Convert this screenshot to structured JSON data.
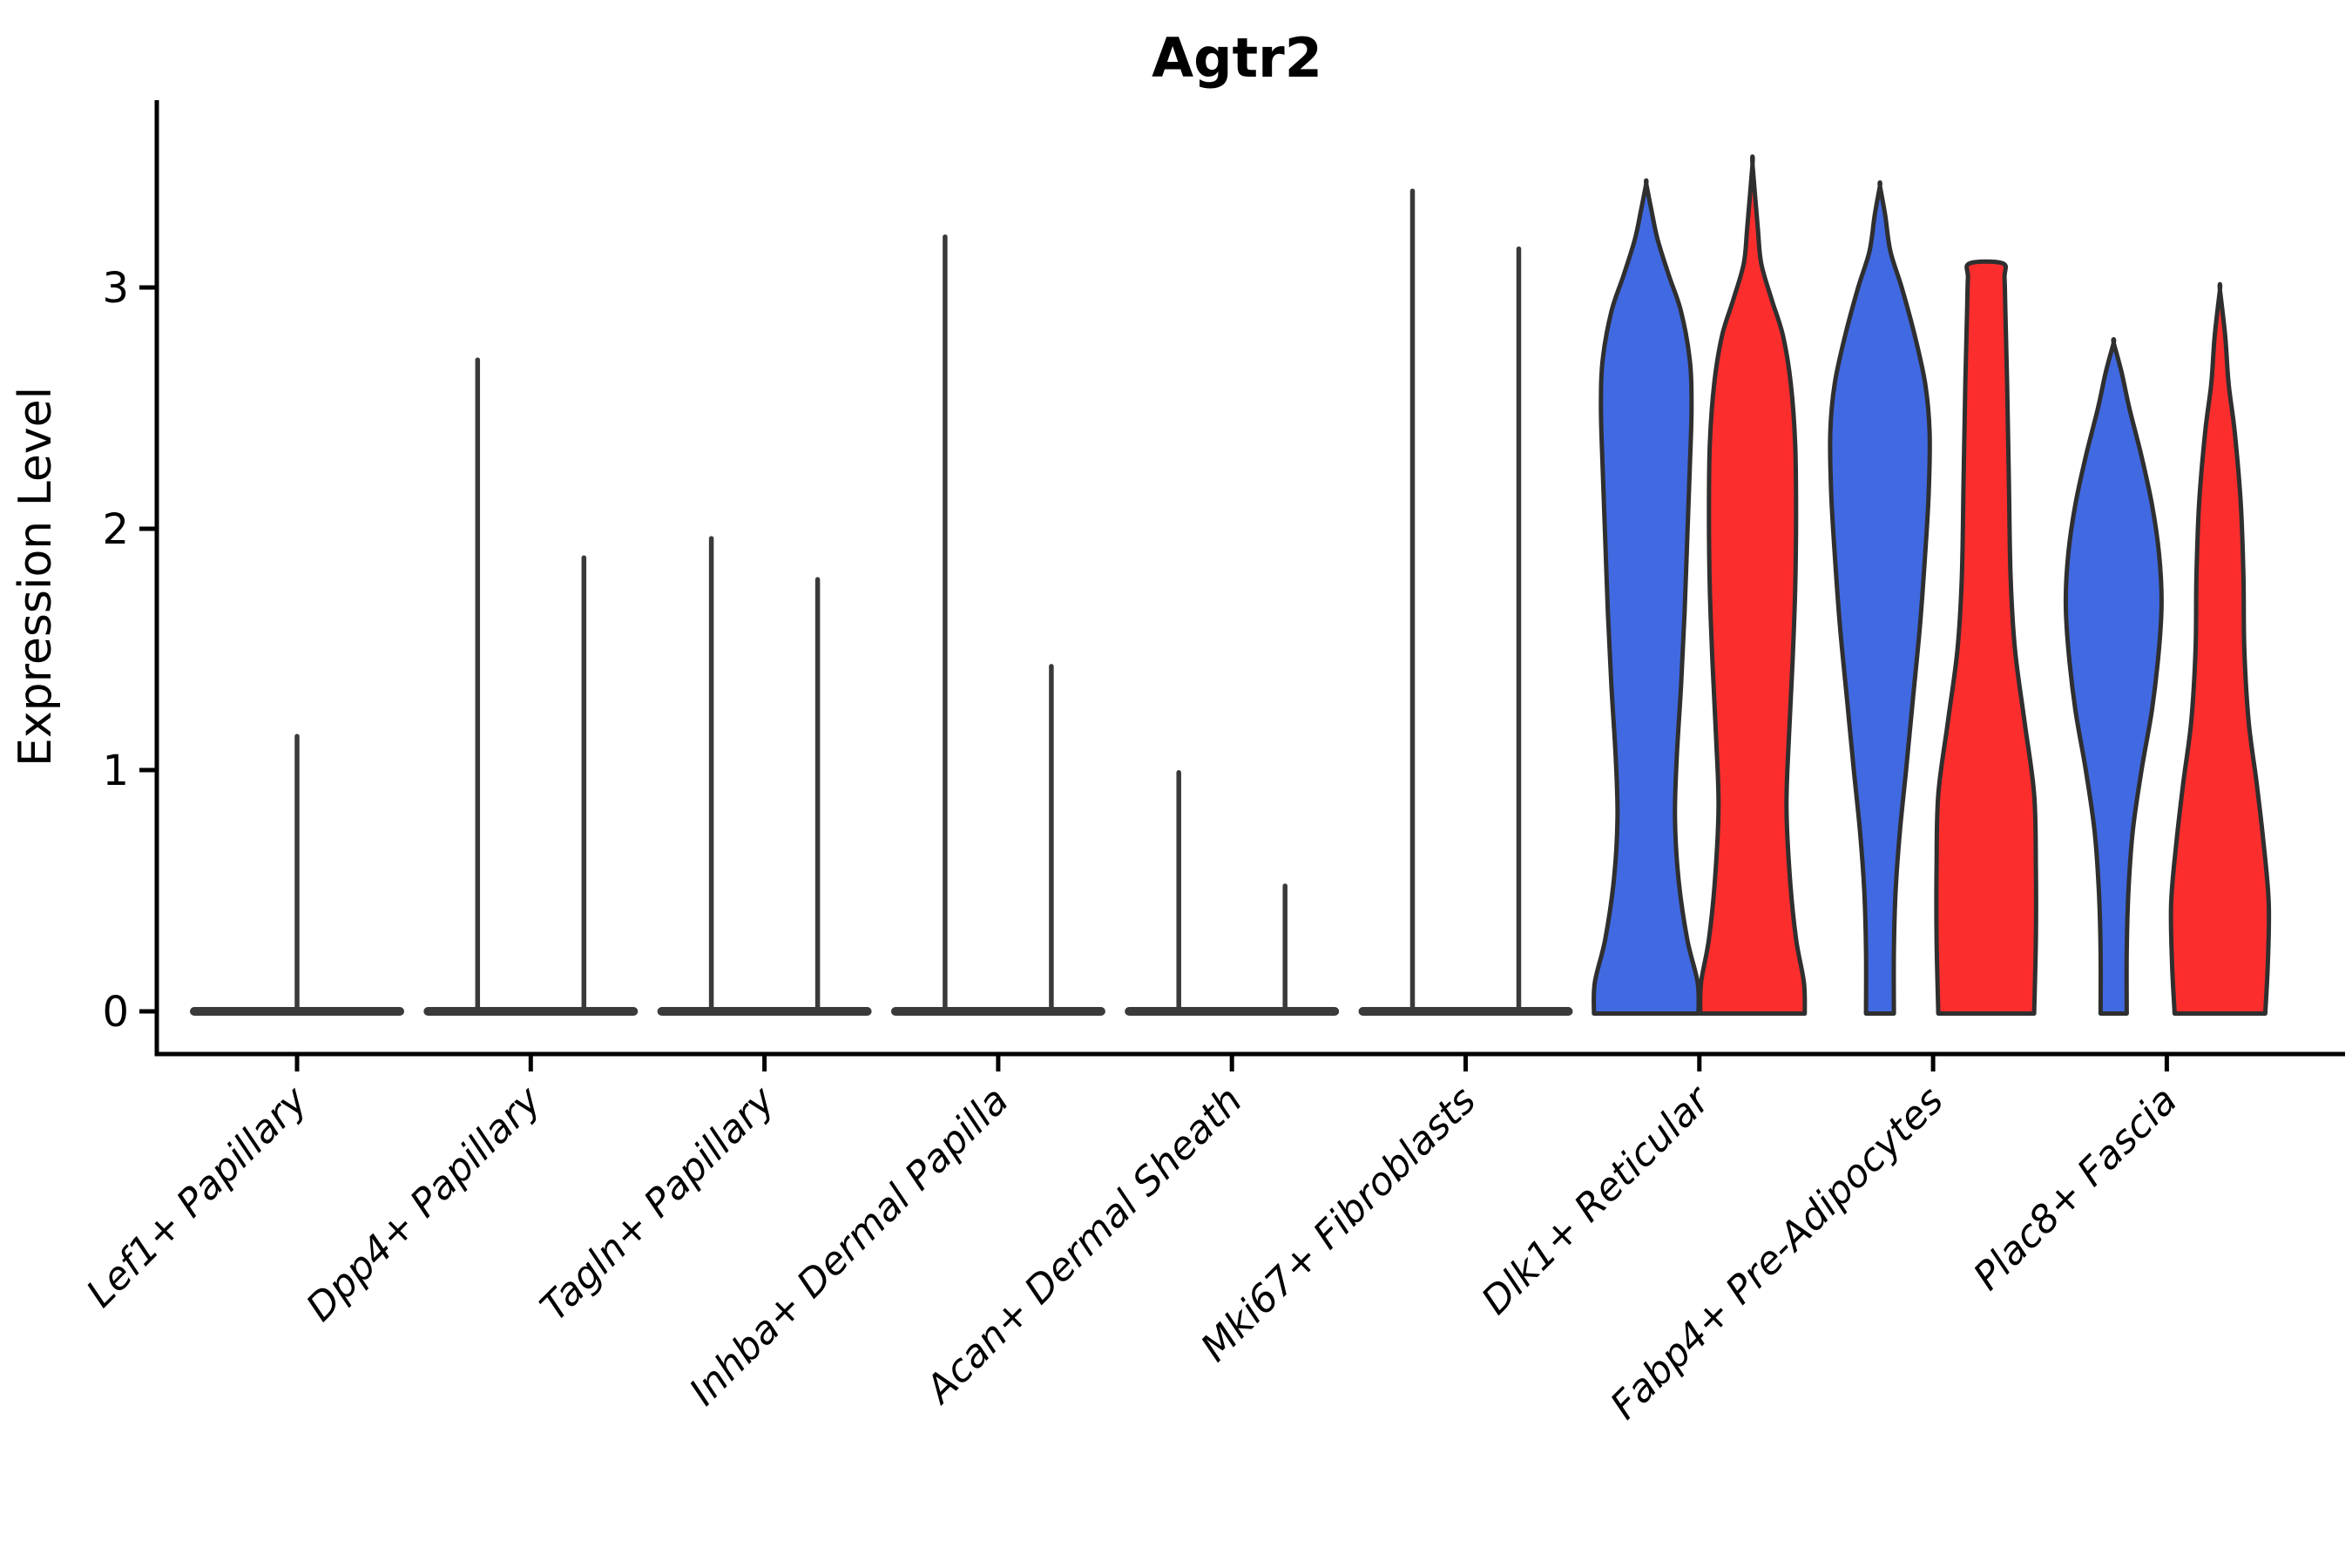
{
  "figure_title": "Agtr2",
  "y_axis": {
    "label": "Expression Level",
    "tick_labels": [
      "0",
      "1",
      "2",
      "3"
    ]
  },
  "x_axis": {
    "categories": [
      "Lef1+ Papillary",
      "Dpp4+ Papillary",
      "Tagln+ Papillary",
      "Inhba+ Dermal Papilla",
      "Acan+ Dermal Sheath",
      "Mki67+ Fibroblasts",
      "Dlk1+ Reticular",
      "Fabp4+ Pre-Adipocytes",
      "Plac8+ Fascia"
    ]
  },
  "colors": {
    "blue": "#4169E1",
    "red": "#FB2D2D",
    "outline": "#2F2F2F",
    "spike": "#3A3A3A",
    "pancake": "#3A3A3A",
    "axis": "#000000",
    "background": "#ffffff"
  },
  "chart_data": {
    "type": "violin",
    "title": "Agtr2",
    "ylabel": "Expression Level",
    "xlabel": "",
    "yticks": [
      0,
      1,
      2,
      3
    ],
    "ylim": [
      0,
      3.77
    ],
    "legend": "none shown; split violins colored blue (left) and red (right)",
    "grid": false,
    "groups": [
      {
        "category": "Lef1+ Papillary",
        "pancake": true,
        "violins": [
          {
            "hue": null,
            "position": "center",
            "kind": "spike",
            "max": 1.14
          }
        ]
      },
      {
        "category": "Dpp4+ Papillary",
        "pancake": true,
        "violins": [
          {
            "hue": "blue",
            "position": "left",
            "kind": "spike",
            "max": 2.7
          },
          {
            "hue": "red",
            "position": "right",
            "kind": "spike",
            "max": 1.88
          }
        ]
      },
      {
        "category": "Tagln+ Papillary",
        "pancake": true,
        "violins": [
          {
            "hue": "blue",
            "position": "left",
            "kind": "spike",
            "max": 1.96
          },
          {
            "hue": "red",
            "position": "right",
            "kind": "spike",
            "max": 1.79
          }
        ]
      },
      {
        "category": "Inhba+ Dermal Papilla",
        "pancake": true,
        "violins": [
          {
            "hue": "blue",
            "position": "left",
            "kind": "spike",
            "max": 3.21
          },
          {
            "hue": "red",
            "position": "right",
            "kind": "spike",
            "max": 1.43
          }
        ]
      },
      {
        "category": "Acan+ Dermal Sheath",
        "pancake": true,
        "violins": [
          {
            "hue": "blue",
            "position": "left",
            "kind": "spike",
            "max": 0.99
          },
          {
            "hue": "red",
            "position": "right",
            "kind": "spike",
            "max": 0.52
          }
        ]
      },
      {
        "category": "Mki67+ Fibroblasts",
        "pancake": true,
        "violins": [
          {
            "hue": "blue",
            "position": "left",
            "kind": "spike",
            "max": 3.4
          },
          {
            "hue": "red",
            "position": "right",
            "kind": "spike",
            "max": 3.16
          }
        ]
      },
      {
        "category": "Dlk1+ Reticular",
        "pancake": false,
        "violins": [
          {
            "hue": "blue",
            "position": "left",
            "kind": "violin",
            "max": 3.43,
            "flat_top": false,
            "profile": [
              [
                0,
                60
              ],
              [
                0.12,
                59
              ],
              [
                0.3,
                47
              ],
              [
                0.55,
                37
              ],
              [
                0.8,
                33
              ],
              [
                1.05,
                35
              ],
              [
                1.35,
                40
              ],
              [
                1.65,
                44
              ],
              [
                1.95,
                47
              ],
              [
                2.25,
                50
              ],
              [
                2.5,
                52
              ],
              [
                2.7,
                50
              ],
              [
                2.9,
                40
              ],
              [
                3.05,
                26
              ],
              [
                3.2,
                13
              ],
              [
                3.32,
                6
              ]
            ]
          },
          {
            "hue": "red",
            "position": "right",
            "kind": "violin",
            "max": 3.51,
            "flat_top": false,
            "profile": [
              [
                0,
                60
              ],
              [
                0.12,
                59
              ],
              [
                0.3,
                50
              ],
              [
                0.55,
                43
              ],
              [
                0.85,
                39
              ],
              [
                1.15,
                42
              ],
              [
                1.45,
                46
              ],
              [
                1.75,
                49
              ],
              [
                2.05,
                50
              ],
              [
                2.35,
                49
              ],
              [
                2.6,
                44
              ],
              [
                2.8,
                35
              ],
              [
                2.95,
                22
              ],
              [
                3.1,
                10
              ],
              [
                3.25,
                6
              ]
            ]
          }
        ]
      },
      {
        "category": "Fabp4+ Pre-Adipocytes",
        "pancake": false,
        "violins": [
          {
            "hue": "blue",
            "position": "left",
            "kind": "violin",
            "max": 3.42,
            "flat_top": false,
            "profile": [
              [
                0,
                16
              ],
              [
                0.25,
                16
              ],
              [
                0.5,
                18
              ],
              [
                0.75,
                23
              ],
              [
                1.0,
                30
              ],
              [
                1.3,
                38
              ],
              [
                1.6,
                46
              ],
              [
                1.9,
                52
              ],
              [
                2.15,
                56
              ],
              [
                2.4,
                57
              ],
              [
                2.6,
                52
              ],
              [
                2.8,
                40
              ],
              [
                3.0,
                25
              ],
              [
                3.15,
                12
              ],
              [
                3.3,
                6
              ]
            ]
          },
          {
            "hue": "red",
            "position": "right",
            "kind": "violin",
            "max": 3.1,
            "flat_top": true,
            "profile": [
              [
                0,
                55
              ],
              [
                0.3,
                57
              ],
              [
                0.6,
                57
              ],
              [
                0.9,
                55
              ],
              [
                1.2,
                44
              ],
              [
                1.5,
                33
              ],
              [
                1.8,
                28
              ],
              [
                2.2,
                26
              ],
              [
                2.6,
                24
              ],
              [
                2.9,
                22
              ],
              [
                3.04,
                21
              ],
              [
                3.1,
                19
              ]
            ]
          }
        ]
      },
      {
        "category": "Plac8+ Fascia",
        "pancake": false,
        "violins": [
          {
            "hue": "blue",
            "position": "left",
            "kind": "violin",
            "max": 2.77,
            "flat_top": false,
            "profile": [
              [
                0,
                15
              ],
              [
                0.25,
                15
              ],
              [
                0.5,
                17
              ],
              [
                0.75,
                22
              ],
              [
                1.0,
                32
              ],
              [
                1.25,
                44
              ],
              [
                1.5,
                52
              ],
              [
                1.7,
                55
              ],
              [
                1.9,
                52
              ],
              [
                2.1,
                44
              ],
              [
                2.3,
                32
              ],
              [
                2.5,
                18
              ],
              [
                2.65,
                9
              ]
            ]
          },
          {
            "hue": "red",
            "position": "right",
            "kind": "violin",
            "max": 2.99,
            "flat_top": false,
            "profile": [
              [
                0,
                52
              ],
              [
                0.2,
                55
              ],
              [
                0.45,
                56
              ],
              [
                0.7,
                50
              ],
              [
                0.95,
                42
              ],
              [
                1.2,
                33
              ],
              [
                1.5,
                28
              ],
              [
                1.8,
                27
              ],
              [
                2.1,
                24
              ],
              [
                2.4,
                17
              ],
              [
                2.6,
                10
              ],
              [
                2.8,
                6
              ]
            ]
          }
        ]
      }
    ]
  }
}
